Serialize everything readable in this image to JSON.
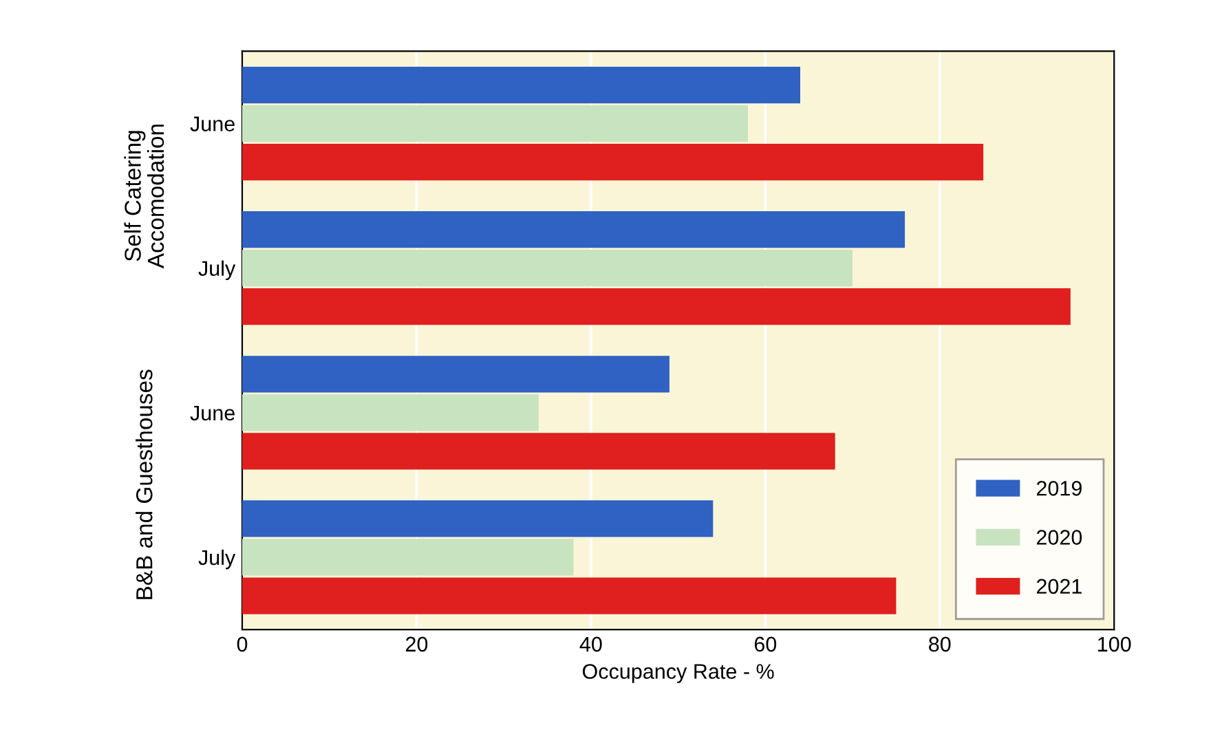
{
  "chart_data": {
    "type": "bar",
    "orientation": "horizontal",
    "xlabel": "Occupancy Rate - %",
    "categories": [
      "June",
      "July",
      "June",
      "July"
    ],
    "series": [
      {
        "name": "2019",
        "color": "#2f62c2",
        "values": [
          64,
          76,
          49,
          54
        ]
      },
      {
        "name": "2020",
        "color": "#c8e3c0",
        "values": [
          58,
          70,
          34,
          38
        ]
      },
      {
        "name": "2021",
        "color": "#e0201e",
        "values": [
          85,
          95,
          68,
          75
        ]
      }
    ],
    "annotations": [
      "Self Catering\nAccomodation",
      "B&B and Guesthouses"
    ],
    "xlim": [
      0,
      100
    ],
    "xticks": [
      0,
      20,
      40,
      60,
      80,
      100
    ],
    "grid": "x",
    "legend": "bottom right"
  }
}
